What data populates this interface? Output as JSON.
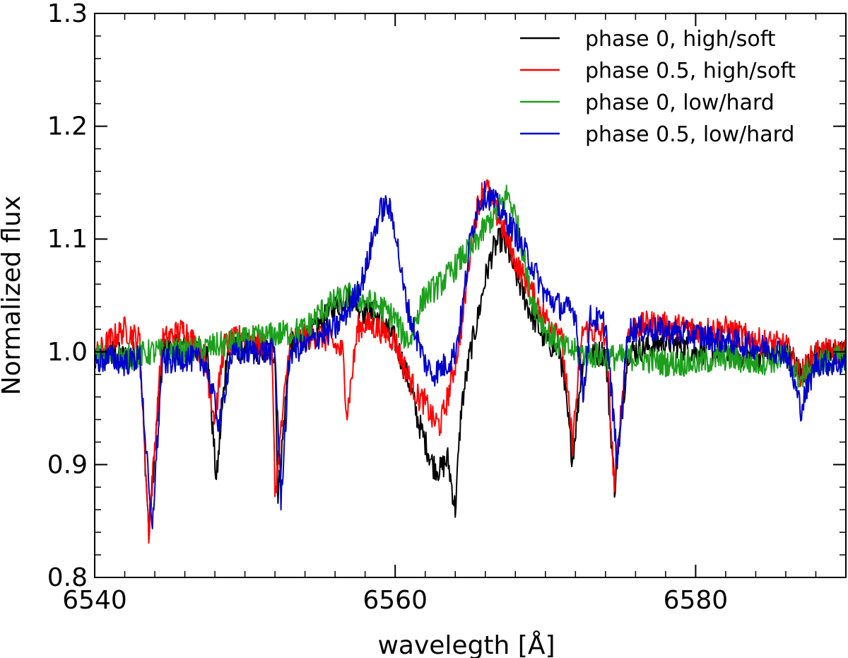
{
  "chart_data": {
    "type": "line",
    "title": "",
    "xlabel": "waveleg​th [Å]",
    "ylabel": "Normalized flux",
    "xlim": [
      6540,
      6590
    ],
    "ylim": [
      0.8,
      1.3
    ],
    "x_ticks": [
      6540,
      6560,
      6580
    ],
    "x_tick_labels": [
      "6540",
      "6560",
      "6580"
    ],
    "y_ticks": [
      0.8,
      0.9,
      1.0,
      1.1,
      1.2,
      1.3
    ],
    "y_tick_labels": [
      "0.8",
      "0.9",
      "1.0",
      "1.1",
      "1.2",
      "1.3"
    ],
    "x_minor_step": 2,
    "y_minor_step": 0.02,
    "grid": false,
    "legend_position": "top-right",
    "series": [
      {
        "name": "phase 0, high/soft",
        "color": "#000000",
        "x": [
          6540,
          6541,
          6542,
          6543,
          6543.6,
          6544.5,
          6546,
          6547.5,
          6548.1,
          6548.8,
          6550,
          6552,
          6552.2,
          6553,
          6554,
          6555,
          6556,
          6557,
          6558,
          6559,
          6560,
          6560.5,
          6561,
          6561.5,
          6562,
          6562.5,
          6563,
          6563.5,
          6564,
          6564.4,
          6565,
          6565.5,
          6566,
          6566.5,
          6567,
          6567.5,
          6568,
          6569,
          6570,
          6571,
          6571.8,
          6572.5,
          6574,
          6574.6,
          6575.5,
          6577,
          6578,
          6580,
          6582,
          6584,
          6586,
          6587,
          6588,
          6590
        ],
        "y": [
          0.99,
          1.0,
          0.995,
          1.0,
          0.84,
          1.0,
          1.005,
          0.998,
          0.885,
          1.0,
          1.005,
          1.0,
          0.87,
          1.005,
          1.01,
          1.025,
          1.04,
          1.05,
          1.035,
          1.03,
          1.01,
          0.99,
          0.97,
          0.94,
          0.92,
          0.9,
          0.895,
          0.905,
          0.86,
          0.95,
          1.0,
          1.03,
          1.065,
          1.09,
          1.1,
          1.09,
          1.07,
          1.035,
          1.01,
          1.0,
          0.905,
          0.995,
          1.0,
          0.88,
          1.0,
          1.005,
          1.01,
          1.0,
          1.0,
          0.995,
          1.0,
          0.98,
          0.995,
          1.0
        ]
      },
      {
        "name": "phase 0.5, high/soft",
        "color": "#ff0000",
        "x": [
          6540,
          6541,
          6542,
          6543,
          6543.6,
          6544.5,
          6546,
          6547.3,
          6548,
          6548.6,
          6550,
          6551.8,
          6552,
          6553,
          6555,
          6556.5,
          6556.8,
          6557.5,
          6558,
          6559,
          6560,
          6560.5,
          6561,
          6561.5,
          6562,
          6562.5,
          6563,
          6563.5,
          6564,
          6564.5,
          6565,
          6565.5,
          6566,
          6566.5,
          6567,
          6568,
          6569,
          6570,
          6571,
          6571.8,
          6572.5,
          6574,
          6574.6,
          6575.5,
          6577,
          6580,
          6582,
          6584,
          6586,
          6587,
          6588,
          6590
        ],
        "y": [
          0.995,
          1.01,
          1.02,
          1.01,
          0.84,
          1.01,
          1.02,
          0.995,
          0.94,
          1.005,
          1.015,
          1.0,
          0.875,
          1.01,
          1.015,
          1.0,
          0.945,
          1.02,
          1.025,
          1.02,
          1.01,
          0.99,
          0.975,
          0.96,
          0.955,
          0.94,
          0.935,
          0.96,
          0.99,
          1.03,
          1.09,
          1.13,
          1.15,
          1.13,
          1.115,
          1.08,
          1.055,
          1.03,
          1.02,
          0.92,
          1.02,
          1.015,
          0.88,
          1.02,
          1.025,
          1.02,
          1.02,
          1.01,
          1.005,
          0.98,
          1.0,
          1.0
        ]
      },
      {
        "name": "phase 0, low/hard",
        "color": "#1ca01c",
        "x": [
          6540,
          6542,
          6544,
          6546,
          6548,
          6550,
          6552,
          6554,
          6555,
          6556,
          6557,
          6558,
          6559,
          6560,
          6560.5,
          6561,
          6561.5,
          6562,
          6563,
          6564,
          6564.5,
          6565,
          6565.5,
          6566,
          6566.5,
          6567,
          6567.5,
          6568,
          6568.5,
          6569,
          6570,
          6571,
          6572,
          6574,
          6576,
          6578,
          6580,
          6582,
          6584,
          6586,
          6587,
          6588,
          6590
        ],
        "y": [
          0.995,
          0.995,
          1.0,
          1.0,
          1.005,
          1.01,
          1.015,
          1.02,
          1.035,
          1.045,
          1.05,
          1.045,
          1.04,
          1.03,
          1.015,
          1.01,
          1.035,
          1.05,
          1.06,
          1.075,
          1.085,
          1.09,
          1.1,
          1.11,
          1.12,
          1.13,
          1.14,
          1.12,
          1.09,
          1.05,
          1.02,
          1.005,
          1.0,
          0.995,
          0.995,
          0.99,
          0.99,
          0.995,
          0.99,
          0.995,
          0.975,
          0.99,
          0.995
        ]
      },
      {
        "name": "phase 0.5, low/hard",
        "color": "#0000cc",
        "x": [
          6540,
          6541,
          6542,
          6543,
          6543.8,
          6544.5,
          6546,
          6547.4,
          6548.3,
          6549,
          6550,
          6552,
          6552.4,
          6553,
          6554,
          6555,
          6556,
          6557,
          6558,
          6558.5,
          6559,
          6559.5,
          6560,
          6560.5,
          6561,
          6561.5,
          6562,
          6562.5,
          6563,
          6563.5,
          6564,
          6564.5,
          6565,
          6565.5,
          6566,
          6566.5,
          6567,
          6568,
          6569,
          6570,
          6571,
          6572,
          6572.5,
          6573,
          6574,
          6574.8,
          6575.5,
          6577,
          6580,
          6582,
          6584,
          6586,
          6587,
          6588,
          6590
        ],
        "y": [
          0.99,
          0.995,
          0.99,
          0.995,
          0.84,
          0.99,
          0.995,
          0.99,
          0.935,
          0.995,
          1.0,
          1.0,
          0.87,
          1.0,
          1.005,
          1.015,
          1.02,
          1.04,
          1.07,
          1.1,
          1.125,
          1.13,
          1.11,
          1.06,
          1.03,
          1.01,
          0.99,
          0.98,
          0.985,
          0.99,
          1.0,
          1.04,
          1.1,
          1.13,
          1.14,
          1.135,
          1.125,
          1.105,
          1.08,
          1.05,
          1.04,
          1.035,
          0.96,
          1.03,
          1.025,
          0.9,
          1.02,
          1.02,
          1.015,
          1.01,
          1.005,
          1.0,
          0.95,
          0.99,
          0.99
        ]
      }
    ]
  }
}
